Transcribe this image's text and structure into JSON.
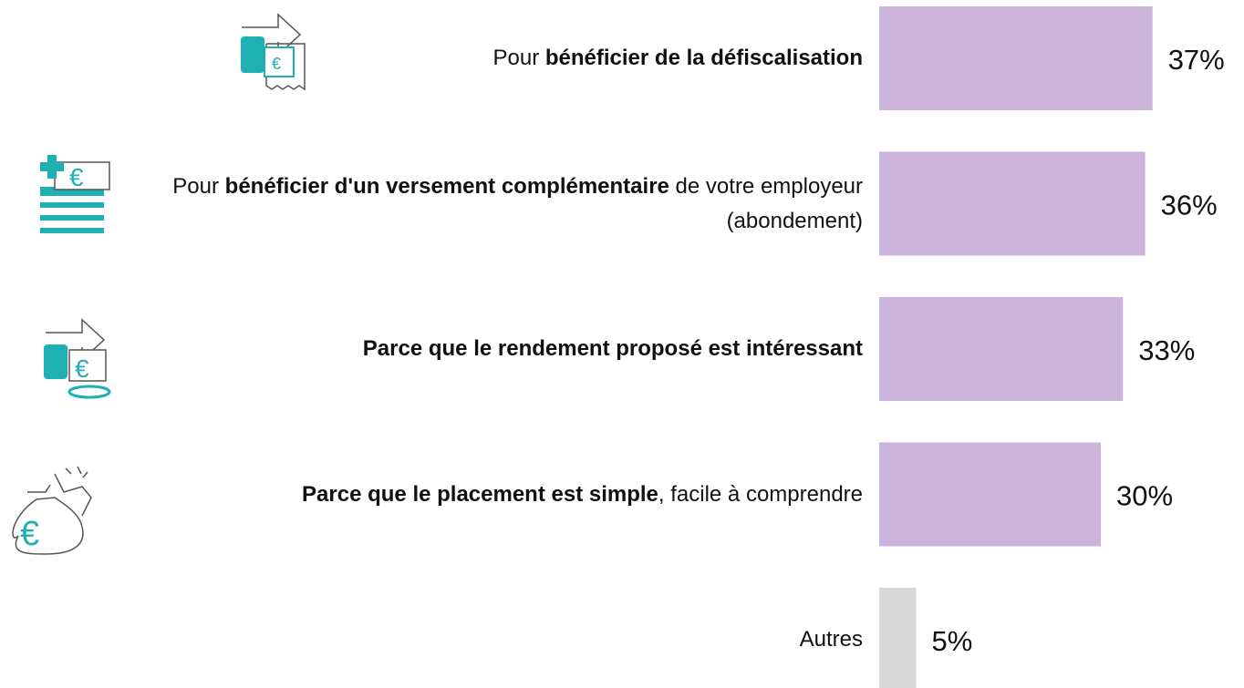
{
  "chart_data": {
    "type": "hbar",
    "categories": [
      [
        {
          "text": "Pour ",
          "bold": false
        },
        {
          "text": "bénéficier de la défiscalisation",
          "bold": true
        }
      ],
      [
        {
          "text": "Pour ",
          "bold": false
        },
        {
          "text": "bénéficier d'un versement complémentaire",
          "bold": true
        },
        {
          "text": " de votre employeur (abondement)",
          "bold": false
        }
      ],
      [
        {
          "text": "Parce que le rendement proposé est intéressant",
          "bold": true
        }
      ],
      [
        {
          "text": "Parce que le placement est simple",
          "bold": true
        },
        {
          "text": ", facile à comprendre",
          "bold": false
        }
      ],
      [
        {
          "text": "Autres",
          "bold": false
        }
      ]
    ],
    "values": [
      37,
      36,
      33,
      30,
      5
    ],
    "value_labels": [
      "37%",
      "36%",
      "33%",
      "30%",
      "5%"
    ],
    "colors": [
      "#cdb4dc",
      "#cdb4dc",
      "#cdb4dc",
      "#cdb4dc",
      "#d9d9d9"
    ]
  }
}
